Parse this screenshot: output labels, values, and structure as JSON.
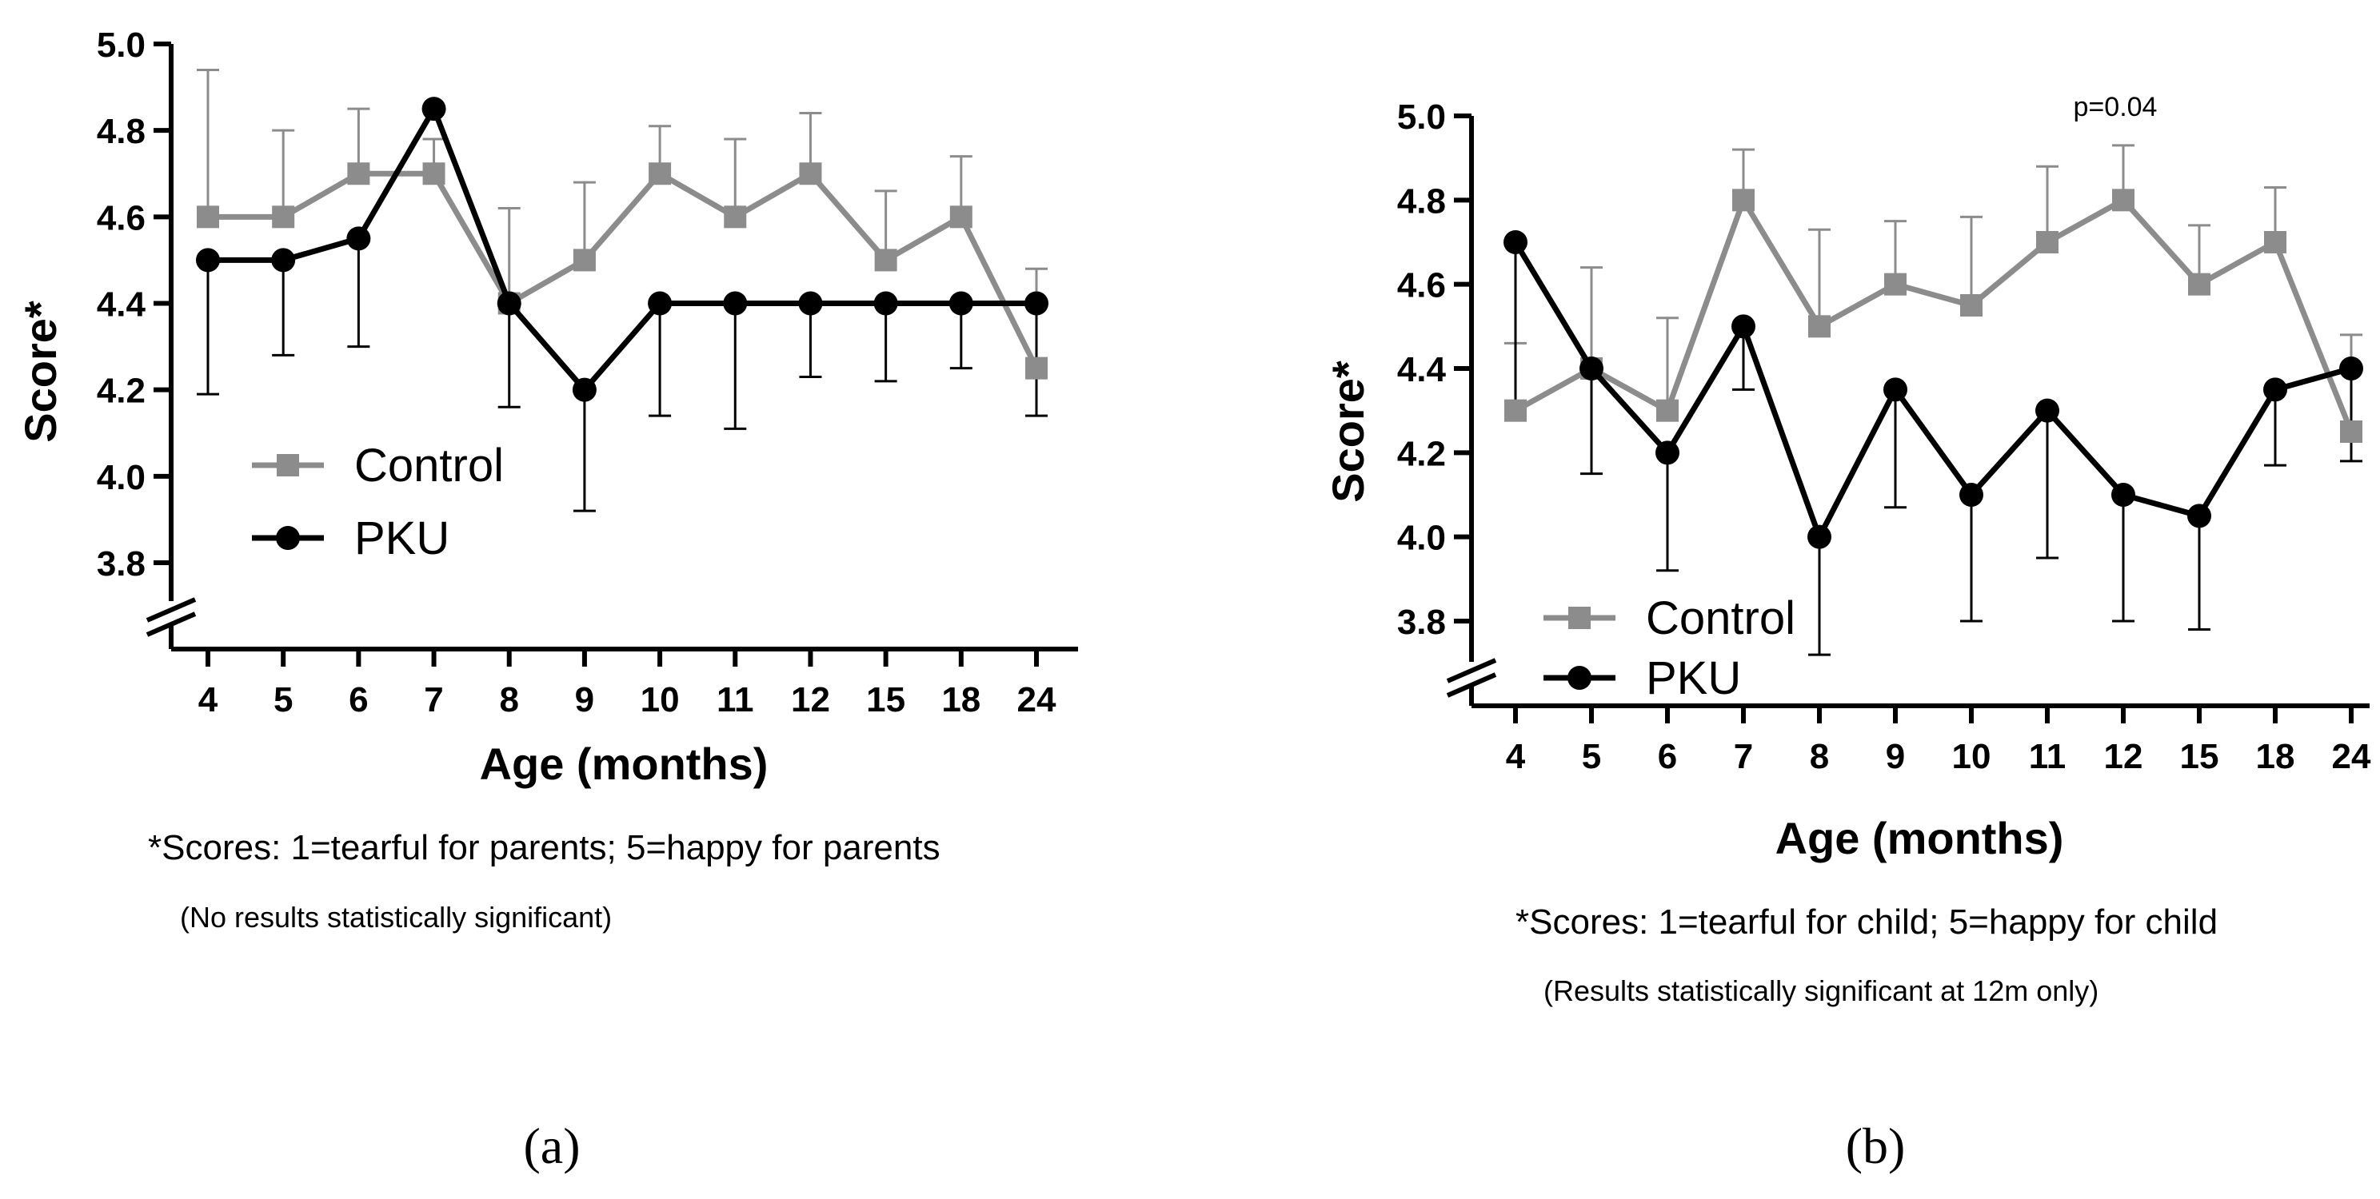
{
  "chart_data": [
    {
      "type": "line",
      "panel_label": "(a)",
      "title": "",
      "xlabel": "Age (months)",
      "ylabel": "Score*",
      "ylim": [
        3.8,
        5.0
      ],
      "yticks": [
        "5.0",
        "4.8",
        "4.6",
        "4.4",
        "4.2",
        "4.0",
        "3.8"
      ],
      "y_axis_break": true,
      "grid": false,
      "legend_position": "lower-left",
      "categories": [
        "4",
        "5",
        "6",
        "7",
        "8",
        "9",
        "10",
        "11",
        "12",
        "15",
        "18",
        "24"
      ],
      "series": [
        {
          "name": "Control",
          "marker": "square",
          "color": "#8c8c8c",
          "values": [
            4.6,
            4.6,
            4.7,
            4.7,
            4.4,
            4.5,
            4.7,
            4.6,
            4.7,
            4.5,
            4.6,
            4.25
          ],
          "error_bar_upper": [
            4.94,
            4.8,
            4.85,
            4.78,
            4.62,
            4.68,
            4.81,
            4.78,
            4.84,
            4.66,
            4.74,
            4.48
          ]
        },
        {
          "name": "PKU",
          "marker": "circle",
          "color": "#000000",
          "values": [
            4.5,
            4.5,
            4.55,
            4.85,
            4.4,
            4.2,
            4.4,
            4.4,
            4.4,
            4.4,
            4.4,
            4.4
          ],
          "error_bar_lower": [
            4.19,
            4.28,
            4.3,
            4.85,
            4.16,
            3.92,
            4.14,
            4.11,
            4.23,
            4.22,
            4.25,
            4.14
          ]
        }
      ],
      "footnote": "*Scores: 1=tearful for parents; 5=happy for parents",
      "subnote": "(No results statistically significant)"
    },
    {
      "type": "line",
      "panel_label": "(b)",
      "title": "",
      "xlabel": "Age (months)",
      "ylabel": "Score*",
      "ylim": [
        3.8,
        5.0
      ],
      "yticks": [
        "5.0",
        "4.8",
        "4.6",
        "4.4",
        "4.2",
        "4.0",
        "3.8"
      ],
      "y_axis_break": true,
      "grid": false,
      "legend_position": "lower-left",
      "annotation": "p=0.04",
      "categories": [
        "4",
        "5",
        "6",
        "7",
        "8",
        "9",
        "10",
        "11",
        "12",
        "15",
        "18",
        "24"
      ],
      "series": [
        {
          "name": "Control",
          "marker": "square",
          "color": "#8c8c8c",
          "values": [
            4.3,
            4.4,
            4.3,
            4.8,
            4.5,
            4.6,
            4.55,
            4.7,
            4.8,
            4.6,
            4.7,
            4.25
          ],
          "error_bar_upper": [
            4.46,
            4.64,
            4.52,
            4.92,
            4.73,
            4.75,
            4.76,
            4.88,
            4.93,
            4.74,
            4.83,
            4.48
          ]
        },
        {
          "name": "PKU",
          "marker": "circle",
          "color": "#000000",
          "values": [
            4.7,
            4.4,
            4.2,
            4.5,
            4.0,
            4.35,
            4.1,
            4.3,
            4.1,
            4.05,
            4.35,
            4.4
          ],
          "error_bar_lower": [
            4.3,
            4.15,
            3.92,
            4.35,
            3.72,
            4.07,
            3.8,
            3.95,
            3.8,
            3.78,
            4.17,
            4.18
          ]
        }
      ],
      "footnote": "*Scores: 1=tearful for child; 5=happy for child",
      "subnote": "(Results statistically significant at 12m only)"
    }
  ]
}
